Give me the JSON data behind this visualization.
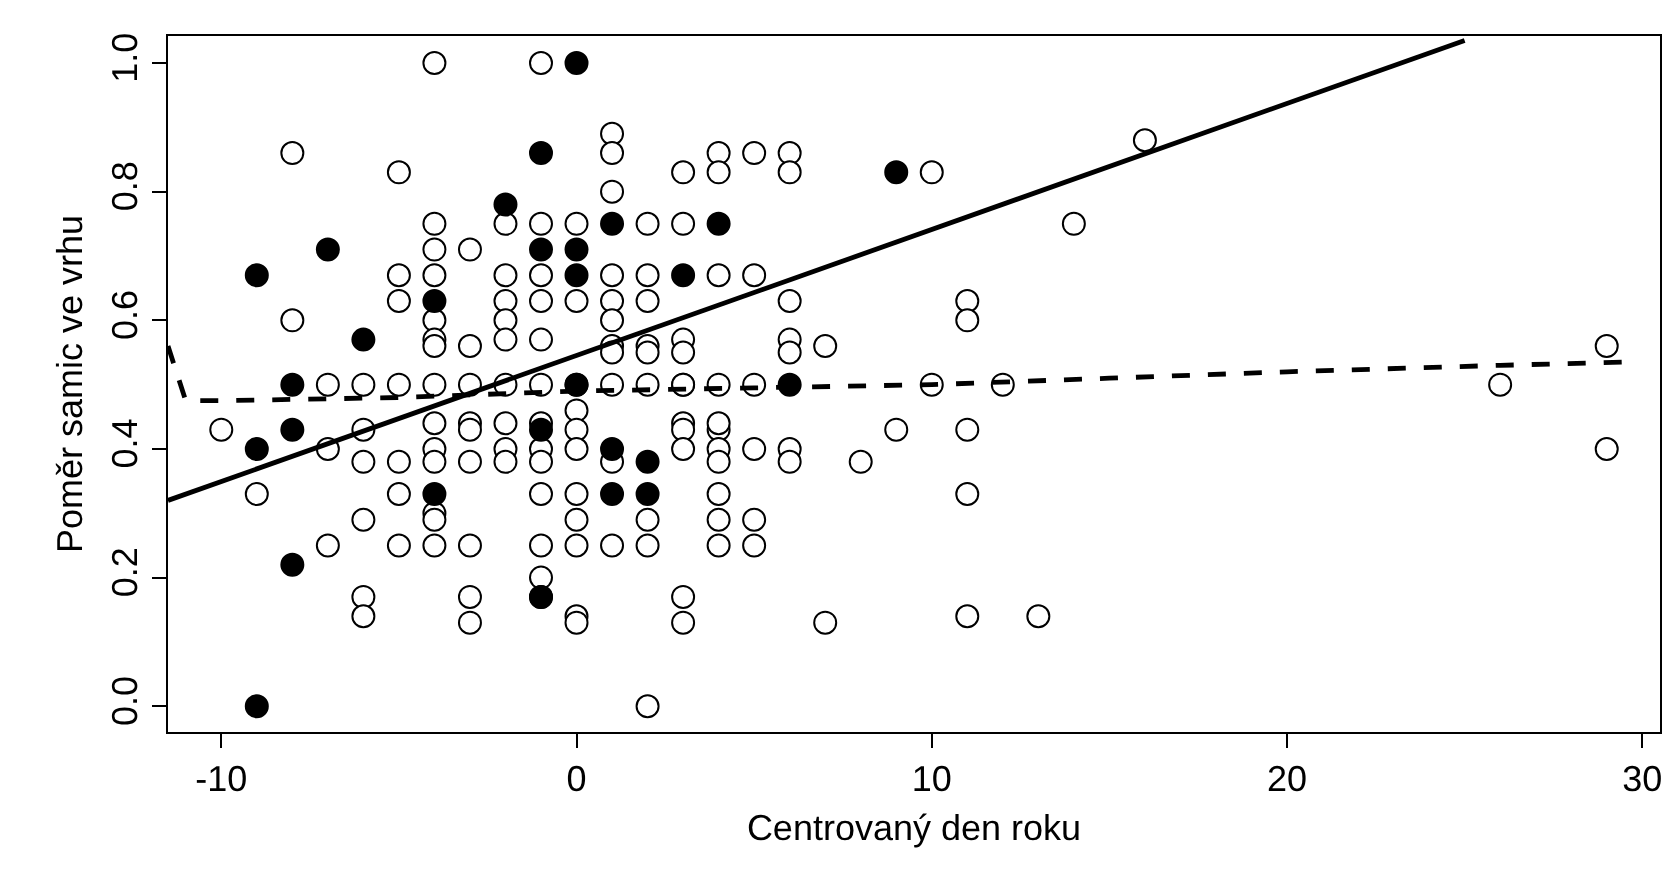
{
  "chart_data": {
    "type": "scatter",
    "xlabel": "Centrovaný den roku",
    "ylabel": "Poměr samic ve vrhu",
    "xlim": [
      -11.5,
      30.5
    ],
    "xticks": [
      -10,
      0,
      10,
      20,
      30
    ],
    "ylim": [
      -0.04,
      1.042
    ],
    "yticks": [
      {
        "value": 0,
        "label": "0.0"
      },
      {
        "value": 0.2,
        "label": "0.2"
      },
      {
        "value": 0.4,
        "label": "0.4"
      },
      {
        "value": 0.6,
        "label": "0.6"
      },
      {
        "value": 0.8,
        "label": "0.8"
      },
      {
        "value": 1.0,
        "label": "1.0"
      }
    ],
    "marker": "circle",
    "series": [
      {
        "color": "#ffffff",
        "x": [
          -10,
          -9,
          -8,
          -8,
          -7,
          -7,
          -7,
          -6,
          -6,
          -6,
          -6,
          -6,
          -6,
          -5,
          -5,
          -5,
          -5,
          -5,
          -5,
          -5,
          -4,
          -4,
          -4,
          -4,
          -4,
          -4,
          -4,
          -4,
          -4,
          -4,
          -4,
          -4,
          -4,
          -4,
          -3,
          -3,
          -3,
          -3,
          -3,
          -3,
          -3,
          -3,
          -3,
          -2,
          -2,
          -2,
          -2,
          -2,
          -2,
          -2,
          -2,
          -2,
          -1,
          -1,
          -1,
          -1,
          -1,
          -1,
          -1,
          -1,
          -1,
          -1,
          -1,
          -1,
          -1,
          0,
          0,
          0,
          0,
          0,
          0,
          0,
          0,
          0,
          0,
          0,
          1,
          1,
          1,
          1,
          1,
          1,
          1,
          1,
          1,
          1,
          1,
          2,
          2,
          2,
          2,
          2,
          2,
          2,
          2,
          2,
          3,
          3,
          3,
          3,
          3,
          3,
          3,
          3,
          3,
          3,
          3,
          4,
          4,
          4,
          4,
          4,
          4,
          4,
          4,
          4,
          4,
          4,
          5,
          5,
          5,
          5,
          5,
          5,
          6,
          6,
          6,
          6,
          6,
          6,
          6,
          7,
          7,
          8,
          9,
          10,
          10,
          11,
          11,
          11,
          11,
          11,
          12,
          13,
          14,
          16,
          26,
          29,
          29
        ],
        "values": [
          0.43,
          0.33,
          0.86,
          0.6,
          0.5,
          0.4,
          0.25,
          0.5,
          0.43,
          0.38,
          0.29,
          0.17,
          0.14,
          0.83,
          0.67,
          0.63,
          0.5,
          0.38,
          0.33,
          0.25,
          1.0,
          0.75,
          0.71,
          0.67,
          0.6,
          0.57,
          0.56,
          0.5,
          0.44,
          0.4,
          0.38,
          0.3,
          0.29,
          0.25,
          0.71,
          0.56,
          0.5,
          0.44,
          0.43,
          0.38,
          0.25,
          0.17,
          0.13,
          0.75,
          0.67,
          0.63,
          0.6,
          0.57,
          0.5,
          0.44,
          0.4,
          0.38,
          1.0,
          0.75,
          0.67,
          0.63,
          0.57,
          0.5,
          0.44,
          0.4,
          0.38,
          0.33,
          0.25,
          0.2,
          0.17,
          0.75,
          0.63,
          0.46,
          0.43,
          0.4,
          0.33,
          0.29,
          0.25,
          0.14,
          0.13,
          0.5,
          0.89,
          0.86,
          0.8,
          0.67,
          0.63,
          0.6,
          0.56,
          0.55,
          0.5,
          0.38,
          0.25,
          0.75,
          0.67,
          0.63,
          0.56,
          0.55,
          0.5,
          0.29,
          0.25,
          0.0,
          0.83,
          0.75,
          0.57,
          0.55,
          0.5,
          0.44,
          0.43,
          0.4,
          0.17,
          0.13,
          0.5,
          0.86,
          0.83,
          0.67,
          0.5,
          0.43,
          0.4,
          0.38,
          0.33,
          0.29,
          0.25,
          0.44,
          0.86,
          0.67,
          0.5,
          0.4,
          0.29,
          0.25,
          0.86,
          0.83,
          0.63,
          0.57,
          0.55,
          0.4,
          0.38,
          0.56,
          0.13,
          0.38,
          0.43,
          0.83,
          0.5,
          0.63,
          0.6,
          0.43,
          0.33,
          0.14,
          0.5,
          0.14,
          0.75,
          0.88,
          0.5,
          0.56,
          0.4
        ]
      },
      {
        "color": "#000000",
        "x": [
          -9,
          -9,
          -9,
          -8,
          -8,
          -8,
          -7,
          -6,
          -4,
          -4,
          -2,
          -1,
          -1,
          -1,
          -1,
          0,
          0,
          0,
          0,
          1,
          1,
          1,
          2,
          2,
          3,
          4,
          6,
          9
        ],
        "values": [
          0.67,
          0.4,
          0.0,
          0.5,
          0.43,
          0.22,
          0.71,
          0.57,
          0.63,
          0.33,
          0.78,
          0.86,
          0.71,
          0.43,
          0.17,
          1.0,
          0.71,
          0.67,
          0.5,
          0.75,
          0.4,
          0.33,
          0.38,
          0.33,
          0.67,
          0.75,
          0.5,
          0.83
        ]
      },
      {
        "type": "line",
        "color": "#000000",
        "line_style": "solid",
        "marker": "none",
        "x": [
          -11.5,
          25
        ],
        "values": [
          0.32,
          1.035
        ]
      },
      {
        "type": "line",
        "color": "#000000",
        "line_style": "dashed",
        "marker": "none",
        "x": [
          -11.5,
          -11,
          -10,
          -5,
          0,
          5,
          10,
          15,
          20,
          26,
          29.5
        ],
        "values": [
          0.56,
          0.475,
          0.475,
          0.48,
          0.49,
          0.495,
          0.5,
          0.51,
          0.52,
          0.53,
          0.535
        ]
      }
    ]
  }
}
